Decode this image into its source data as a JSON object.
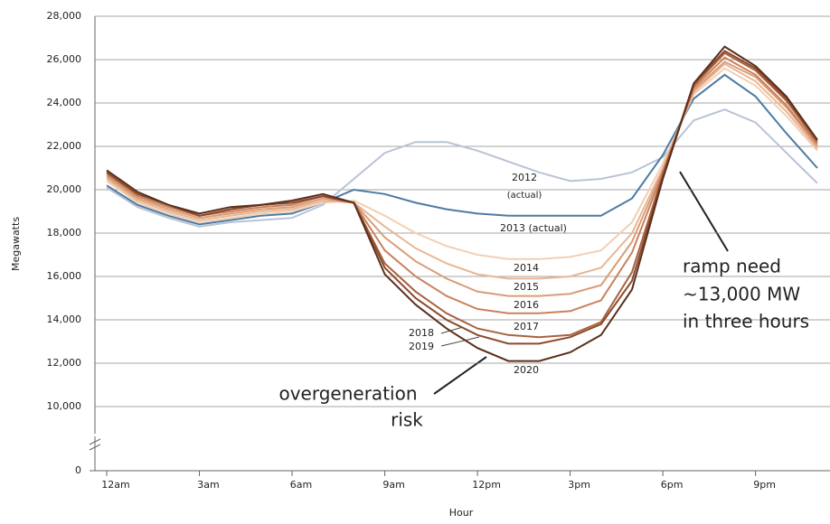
{
  "chart_data": {
    "type": "line",
    "y_label": "Megawatts",
    "x_label": "Hour",
    "x": [
      0,
      1,
      2,
      3,
      4,
      5,
      6,
      7,
      8,
      9,
      10,
      11,
      12,
      13,
      14,
      15,
      16,
      17,
      18,
      19,
      20,
      21,
      22,
      23
    ],
    "xlim": [
      0,
      23
    ],
    "xticks": [
      {
        "value": 0,
        "label": "12am"
      },
      {
        "value": 3,
        "label": "3am"
      },
      {
        "value": 6,
        "label": "6am"
      },
      {
        "value": 9,
        "label": "9am"
      },
      {
        "value": 12,
        "label": "12pm"
      },
      {
        "value": 15,
        "label": "3pm"
      },
      {
        "value": 18,
        "label": "6pm"
      },
      {
        "value": 21,
        "label": "9pm"
      }
    ],
    "ylim": [
      0,
      28000
    ],
    "yticks": [
      0,
      {
        "value": 10000,
        "label": "10,000"
      },
      {
        "value": 12000,
        "label": "12,000"
      },
      {
        "value": 14000,
        "label": "14,000"
      },
      {
        "value": 16000,
        "label": "16,000"
      },
      {
        "value": 18000,
        "label": "18,000"
      },
      {
        "value": 20000,
        "label": "20,000"
      },
      {
        "value": 22000,
        "label": "22,000"
      },
      {
        "value": 24000,
        "label": "24,000"
      },
      {
        "value": 26000,
        "label": "26,000"
      },
      {
        "value": 28000,
        "label": "28,000"
      }
    ],
    "y_axis_break": true,
    "grid": true,
    "series": [
      {
        "name": "2012",
        "color": "#b9c3d6",
        "values": [
          20100,
          19200,
          18700,
          18300,
          18500,
          18600,
          18700,
          19300,
          20500,
          21700,
          22200,
          22200,
          21800,
          21300,
          20800,
          20400,
          20500,
          20800,
          21500,
          23200,
          23700,
          23100,
          21700,
          20300
        ]
      },
      {
        "name": "2013 (actual)",
        "color": "#4d7ba3",
        "values": [
          20200,
          19300,
          18800,
          18400,
          18600,
          18800,
          18900,
          19400,
          20000,
          19800,
          19400,
          19100,
          18900,
          18800,
          18800,
          18800,
          18800,
          19600,
          21600,
          24200,
          25300,
          24300,
          22600,
          21000
        ]
      },
      {
        "name": "2014",
        "color": "#f2cfb4",
        "values": [
          20400,
          19400,
          18900,
          18500,
          18700,
          18900,
          19000,
          19400,
          19500,
          18800,
          18000,
          17400,
          17000,
          16800,
          16800,
          16900,
          17200,
          18500,
          21200,
          24400,
          25600,
          24800,
          23400,
          21800
        ]
      },
      {
        "name": "2015",
        "color": "#e8b692",
        "values": [
          20500,
          19500,
          19000,
          18600,
          18800,
          19000,
          19100,
          19500,
          19400,
          18300,
          17300,
          16600,
          16100,
          15900,
          15900,
          16000,
          16400,
          18000,
          21000,
          24500,
          25800,
          25000,
          23600,
          21900
        ]
      },
      {
        "name": "2016",
        "color": "#da9c77",
        "values": [
          20600,
          19600,
          19100,
          18700,
          18900,
          19100,
          19200,
          19600,
          19400,
          17800,
          16700,
          15900,
          15300,
          15100,
          15100,
          15200,
          15600,
          17600,
          20900,
          24600,
          25900,
          25200,
          23800,
          22000
        ]
      },
      {
        "name": "2017",
        "color": "#c9825d",
        "values": [
          20700,
          19700,
          19200,
          18800,
          19000,
          19200,
          19300,
          19700,
          19400,
          17200,
          16000,
          15100,
          14500,
          14300,
          14300,
          14400,
          14900,
          17100,
          20800,
          24700,
          26100,
          25300,
          23900,
          22100
        ]
      },
      {
        "name": "2018",
        "color": "#a9623f",
        "values": [
          20800,
          19800,
          19300,
          18800,
          19100,
          19300,
          19400,
          19700,
          19400,
          16600,
          15300,
          14300,
          13600,
          13300,
          13200,
          13300,
          13900,
          16200,
          20700,
          24800,
          26300,
          25500,
          24100,
          22200
        ]
      },
      {
        "name": "2019",
        "color": "#8a4a2c",
        "values": [
          20800,
          19800,
          19300,
          18800,
          19100,
          19300,
          19400,
          19700,
          19400,
          16400,
          15000,
          14000,
          13300,
          12900,
          12900,
          13200,
          13800,
          15800,
          20600,
          24900,
          26400,
          25600,
          24200,
          22300
        ]
      },
      {
        "name": "2020",
        "color": "#5a2f1c",
        "values": [
          20900,
          19900,
          19300,
          18900,
          19200,
          19300,
          19500,
          19800,
          19400,
          16100,
          14700,
          13600,
          12700,
          12100,
          12100,
          12500,
          13300,
          15400,
          20500,
          24900,
          26600,
          25700,
          24300,
          22300
        ]
      }
    ],
    "series_note": "(actual)",
    "annotations": [
      [
        "overgeneration",
        "risk"
      ],
      [
        "ramp need",
        "~13,000 MW",
        "in three hours"
      ]
    ]
  }
}
